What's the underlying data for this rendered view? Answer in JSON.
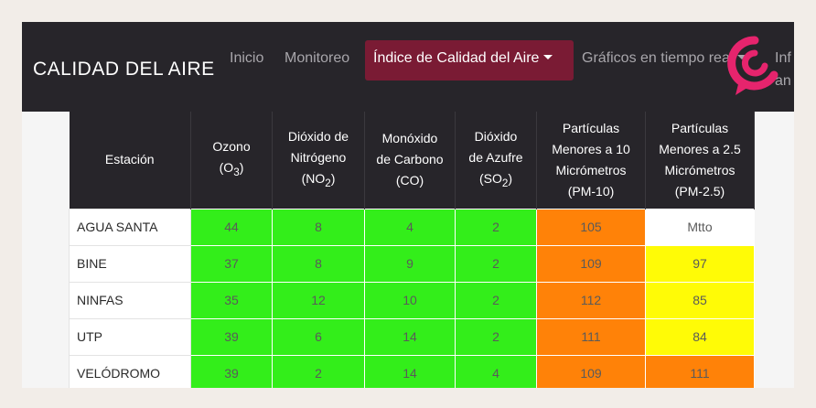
{
  "navbar": {
    "brand": "CALIDAD DEL AIRE",
    "links": [
      "Inicio",
      "Monitoreo"
    ],
    "active": "Índice de Calidad del Aire",
    "graficos": "Gráficos en tiempo real",
    "partial_top": "Inf",
    "partial_bottom": "an"
  },
  "colors": {
    "navbar": "#27252a",
    "active_tab": "#7a1b34",
    "good": "#33ee1a",
    "moderate": "#fffb06",
    "bad": "#ff8208",
    "logo": "#e6246d"
  },
  "table": {
    "headers": [
      {
        "line1": "Estación"
      },
      {
        "line1": "Ozono",
        "line2": "(O",
        "sub": "3",
        "tail": ")"
      },
      {
        "line1": "Dióxido de",
        "line2a": "Nitrógeno",
        "line3": "(NO",
        "sub": "2",
        "tail": ")"
      },
      {
        "line1": "Monóxido",
        "line2a": "de Carbono",
        "line3": "(CO)"
      },
      {
        "line1": "Dióxido",
        "line2a": "de Azufre",
        "line3": "(SO",
        "sub": "2",
        "tail": ")"
      },
      {
        "line1": "Partículas",
        "line2a": "Menores a 10",
        "line3": "Micrómetros",
        "line4": "(PM-10)"
      },
      {
        "line1": "Partículas",
        "line2a": "Menores a 2.5",
        "line3": "Micrómetros",
        "line4": "(PM-2.5)"
      }
    ],
    "rows": [
      {
        "station": "AGUA SANTA",
        "values": [
          "44",
          "8",
          "4",
          "2",
          "105",
          "Mtto"
        ],
        "levels": [
          "green",
          "green",
          "green",
          "green",
          "orange",
          "white"
        ]
      },
      {
        "station": "BINE",
        "values": [
          "37",
          "8",
          "9",
          "2",
          "109",
          "97"
        ],
        "levels": [
          "green",
          "green",
          "green",
          "green",
          "orange",
          "yellow"
        ]
      },
      {
        "station": "NINFAS",
        "values": [
          "35",
          "12",
          "10",
          "2",
          "112",
          "85"
        ],
        "levels": [
          "green",
          "green",
          "green",
          "green",
          "orange",
          "yellow"
        ]
      },
      {
        "station": "UTP",
        "values": [
          "39",
          "6",
          "14",
          "2",
          "111",
          "84"
        ],
        "levels": [
          "green",
          "green",
          "green",
          "green",
          "orange",
          "yellow"
        ]
      },
      {
        "station": "VELÓDROMO",
        "values": [
          "39",
          "2",
          "14",
          "4",
          "109",
          "111"
        ],
        "levels": [
          "green",
          "green",
          "green",
          "green",
          "orange",
          "orange"
        ]
      }
    ]
  }
}
